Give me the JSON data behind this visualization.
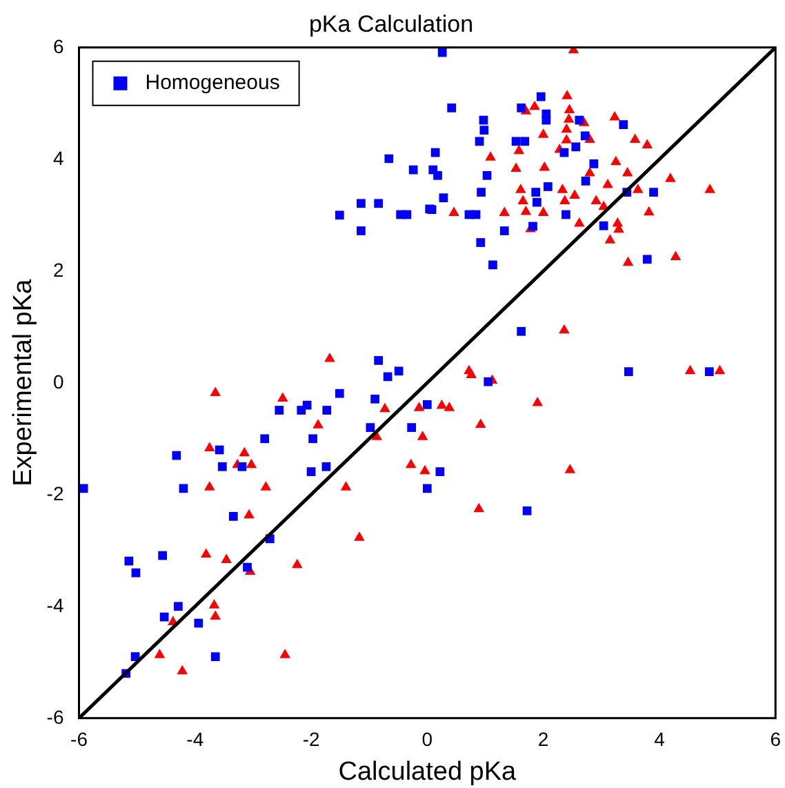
{
  "chart_data": {
    "type": "scatter",
    "title": "pKa Calculation",
    "xlabel": "Calculated pKa",
    "ylabel": "Experimental pKa",
    "xlim": [
      -6,
      6
    ],
    "ylim": [
      -6,
      6
    ],
    "xticks": [
      -6,
      -4,
      -2,
      0,
      2,
      4,
      6
    ],
    "yticks": [
      -6,
      -4,
      -2,
      0,
      2,
      4,
      6
    ],
    "grid": false,
    "legend": "top left",
    "series": [
      {
        "name": "Homogeneous",
        "color": "#0000ff",
        "marker": "square",
        "x": [
          -1.51,
          -1.14,
          -1.14,
          -0.84,
          -0.66,
          -0.46,
          -0.35,
          -0.24,
          0.04,
          -0.84,
          -0.68,
          -0.49,
          0.26,
          0.42,
          0.1,
          0.18,
          0.14,
          0.28,
          0.08,
          0.72,
          0.84,
          0.92,
          1.13,
          0.93,
          1.03,
          0.9,
          0.97,
          0.98,
          1.33,
          1.62,
          1.96,
          2.05,
          2.05,
          1.53,
          1.68,
          1.87,
          1.89,
          2.08,
          1.82,
          2.39,
          2.36,
          2.56,
          2.62,
          2.72,
          2.87,
          2.73,
          3.38,
          3.44,
          3.9,
          3.04,
          3.79,
          1.62,
          3.47,
          4.86,
          -5.92,
          -4.32,
          -4.2,
          -3.58,
          -3.53,
          -3.19,
          -3.34,
          -2.8,
          -2.71,
          -3.1,
          -2.55,
          -2.17,
          -2.07,
          -1.97,
          -2,
          -1.74,
          -1.73,
          -1.51,
          -0.9,
          -0.98,
          -0.27,
          0,
          0,
          -5.14,
          -5.02,
          -4.56,
          -4.29,
          -4.53,
          -3.94,
          -3.65,
          -5.03,
          -5.19,
          1.05,
          0.22,
          1.72
        ],
        "values": [
          3.0,
          3.21,
          2.72,
          3.21,
          4.01,
          3.01,
          3.01,
          3.81,
          3.11,
          0.4,
          0.11,
          0.21,
          5.91,
          4.92,
          3.81,
          3.71,
          4.12,
          3.31,
          3.1,
          3.01,
          3.01,
          2.51,
          2.11,
          3.41,
          3.71,
          4.32,
          4.7,
          4.52,
          2.72,
          4.92,
          5.12,
          4.81,
          4.7,
          4.32,
          4.32,
          3.41,
          3.23,
          3.51,
          2.8,
          3.01,
          4.12,
          4.22,
          4.7,
          4.42,
          3.92,
          3.61,
          4.62,
          3.41,
          3.41,
          2.81,
          2.21,
          0.92,
          0.2,
          0.2,
          -1.89,
          -1.3,
          -1.89,
          -1.2,
          -1.5,
          -1.5,
          -2.39,
          -1.0,
          -2.79,
          -3.3,
          -0.49,
          -0.49,
          -0.4,
          -1.0,
          -1.59,
          -1.5,
          -0.49,
          -0.19,
          -0.29,
          -0.8,
          -0.8,
          -1.89,
          -0.39,
          -3.19,
          -3.4,
          -3.09,
          -4.0,
          -4.19,
          -4.3,
          -4.9,
          -4.9,
          -5.2,
          0.02,
          -1.59,
          -2.29
        ]
      },
      {
        "color": "#ff0000",
        "marker": "triangle",
        "x": [
          -1.68,
          2.52,
          2.41,
          1.7,
          1.85,
          2.45,
          2.44,
          2.7,
          3.23,
          2.4,
          2.0,
          2.8,
          2.4,
          2.28,
          1.58,
          3.58,
          3.79,
          1.09,
          1.53,
          2.02,
          3.25,
          2.8,
          3.45,
          4.19,
          4.87,
          3.11,
          3.63,
          1.61,
          2.33,
          2.54,
          1.65,
          2.37,
          2.91,
          3.04,
          0.46,
          1.33,
          1.7,
          2.0,
          3.82,
          2.62,
          3.28,
          3.3,
          1.78,
          3.15,
          3.46,
          4.28,
          2.36,
          0.72,
          0.76,
          1.12,
          4.53,
          5.04,
          -3.65,
          -3.75,
          -3.75,
          -3.15,
          -3.27,
          -3.03,
          -2.78,
          -3.07,
          -2.49,
          -1.88,
          -1.4,
          -1.17,
          -2.24,
          -3.05,
          -3.81,
          -3.46,
          -3.67,
          -3.65,
          -4.38,
          -4.61,
          -4.22,
          -2.45,
          -0.73,
          -0.87,
          -0.28,
          -0.14,
          -0.08,
          -0.04,
          0.25,
          0.38,
          1.9,
          0.92,
          2.46,
          0.89
        ],
        "values": [
          0.43,
          5.95,
          5.13,
          4.86,
          4.94,
          4.88,
          4.71,
          4.65,
          4.75,
          4.53,
          4.44,
          4.35,
          4.34,
          4.17,
          4.15,
          4.35,
          4.25,
          4.03,
          3.83,
          3.85,
          3.95,
          3.75,
          3.75,
          3.65,
          3.45,
          3.54,
          3.45,
          3.45,
          3.45,
          3.35,
          3.25,
          3.25,
          3.25,
          3.15,
          3.04,
          3.04,
          3.06,
          3.04,
          3.05,
          2.85,
          2.85,
          2.74,
          2.75,
          2.55,
          2.15,
          2.25,
          0.94,
          0.21,
          0.14,
          0.04,
          0.21,
          0.21,
          -0.18,
          -1.17,
          -1.87,
          -1.26,
          -1.47,
          -1.47,
          -1.87,
          -2.37,
          -0.28,
          -0.76,
          -1.87,
          -2.77,
          -3.26,
          -3.38,
          -3.07,
          -3.17,
          -3.98,
          -4.18,
          -4.28,
          -4.87,
          -5.16,
          -4.87,
          -0.47,
          -0.97,
          -1.47,
          -0.45,
          -0.97,
          -1.58,
          -0.41,
          -0.45,
          -0.36,
          -0.75,
          -1.56,
          -2.26
        ]
      },
      {
        "type": "line",
        "color": "#000000",
        "marker": "none",
        "line_style": "solid",
        "x": [
          -6,
          6
        ],
        "values": [
          -6,
          6
        ]
      }
    ]
  }
}
